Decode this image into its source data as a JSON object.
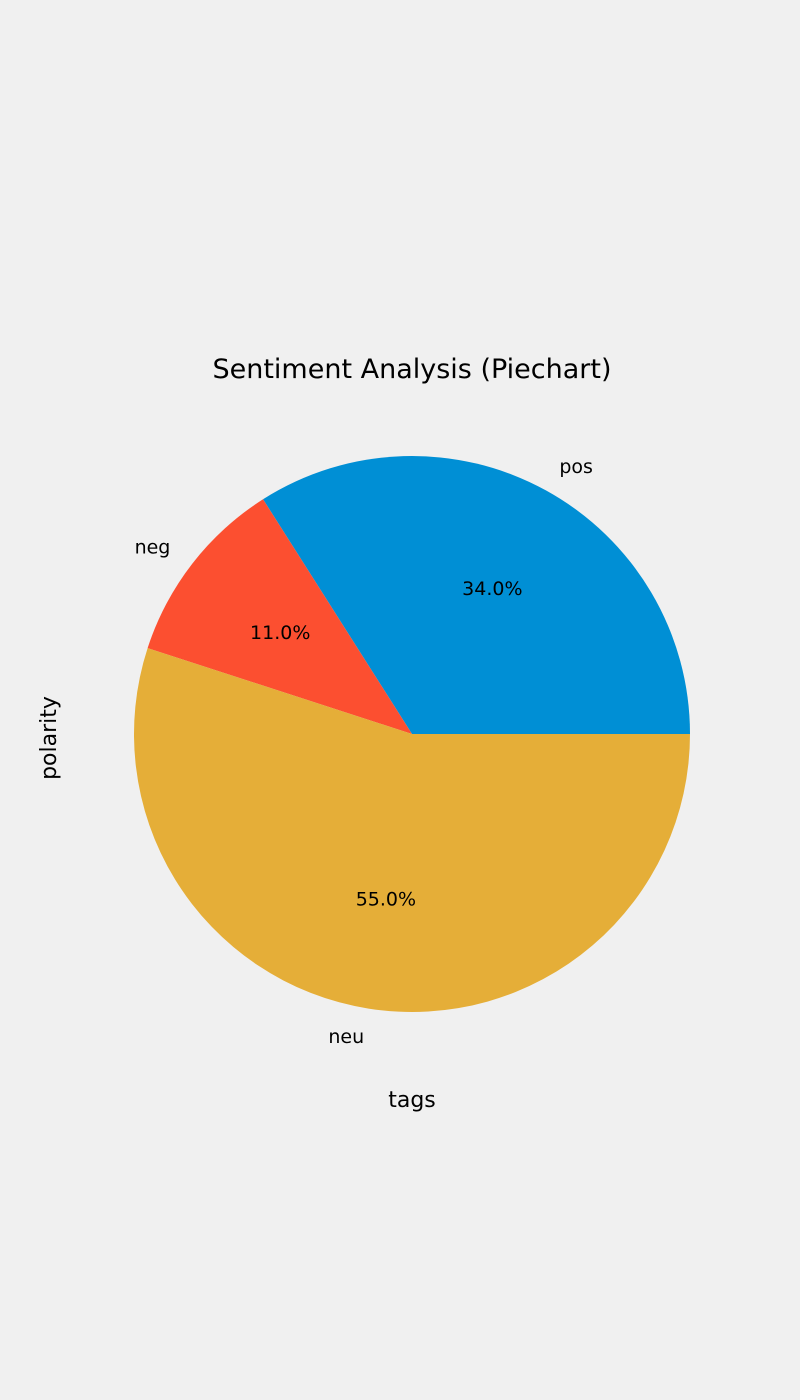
{
  "chart_data": {
    "type": "pie",
    "title": "Sentiment Analysis (Piechart)",
    "xlabel": "tags",
    "ylabel": "polarity",
    "slices": [
      {
        "label": "pos",
        "value": 34.0,
        "pct_label": "34.0%",
        "color": "#008fd5"
      },
      {
        "label": "neg",
        "value": 11.0,
        "pct_label": "11.0%",
        "color": "#fc4f30"
      },
      {
        "label": "neu",
        "value": 55.0,
        "pct_label": "55.0%",
        "color": "#e5ae38"
      }
    ],
    "start_angle_deg": 0,
    "direction": "counterclockwise"
  },
  "colors": {
    "background": "#f0f0f0",
    "text": "#000000"
  }
}
